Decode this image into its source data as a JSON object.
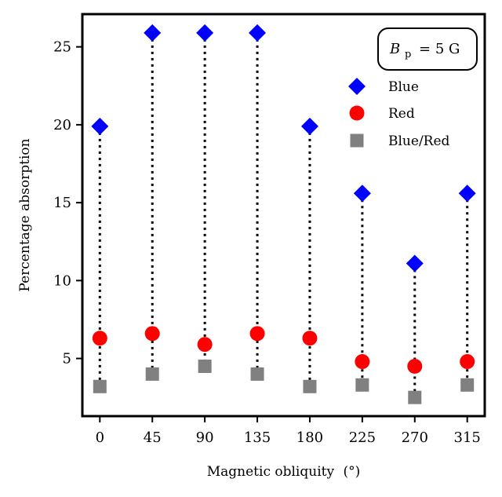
{
  "chart_data": {
    "type": "scatter",
    "title": "",
    "xlabel": "Magnetic obliquity ($^\\circ$)",
    "xlabel_text": "Magnetic obliquity",
    "xlabel_unit": "(°)",
    "ylabel": "Percentage absorption",
    "x": [
      0,
      45,
      90,
      135,
      180,
      225,
      270,
      315
    ],
    "x_tick_labels": [
      "0",
      "45",
      "90",
      "135",
      "180",
      "225",
      "270",
      "315"
    ],
    "y_ticks": [
      5,
      10,
      15,
      20,
      25
    ],
    "xlim": [
      -15,
      330
    ],
    "ylim": [
      1.3,
      27.1
    ],
    "series": [
      {
        "name": "Blue",
        "marker": "diamond",
        "color": "#0000ff",
        "values": [
          19.9,
          25.9,
          25.9,
          25.9,
          19.9,
          15.6,
          11.1,
          15.6
        ]
      },
      {
        "name": "Red",
        "marker": "circle",
        "color": "#ff0000",
        "values": [
          6.3,
          6.6,
          5.9,
          6.6,
          6.3,
          4.8,
          4.5,
          4.8
        ]
      },
      {
        "name": "Blue/Red",
        "marker": "square",
        "color": "#808080",
        "values": [
          3.2,
          4.0,
          4.5,
          4.0,
          3.2,
          3.3,
          2.5,
          3.3
        ]
      }
    ],
    "connector": {
      "style": "dotted",
      "color": "#000000"
    },
    "annotation": {
      "symbol": "B",
      "subscript": "p",
      "text": "= 5 G"
    },
    "legend_position": "top-right",
    "grid": false
  }
}
